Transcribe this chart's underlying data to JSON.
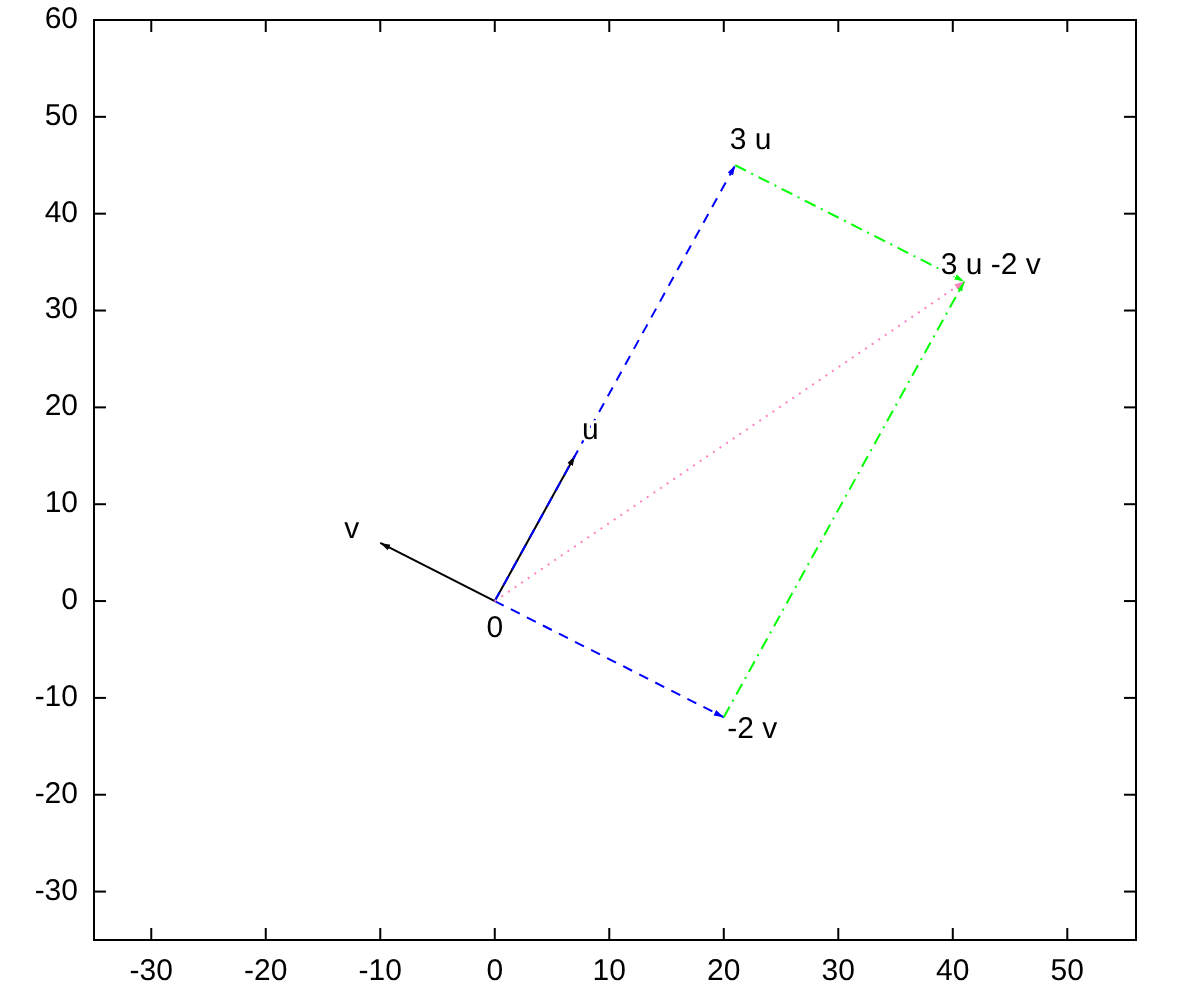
{
  "chart_data": {
    "type": "line",
    "xlim": [
      -35,
      56
    ],
    "ylim": [
      -35,
      60
    ],
    "xticks": [
      -30,
      -20,
      -10,
      0,
      10,
      20,
      30,
      40,
      50
    ],
    "yticks": [
      -30,
      -20,
      -10,
      0,
      10,
      20,
      30,
      40,
      50,
      60
    ],
    "grid": false,
    "marker": "none",
    "series": [
      {
        "color": "#000000",
        "line_style": "solid",
        "x": [
          0,
          7
        ],
        "values": [
          0,
          15
        ]
      },
      {
        "color": "#000000",
        "line_style": "solid",
        "x": [
          0,
          -10
        ],
        "values": [
          0,
          6
        ]
      },
      {
        "color": "#0000ff",
        "line_style": "dashed",
        "x": [
          0,
          21
        ],
        "values": [
          0,
          45
        ]
      },
      {
        "color": "#0000ff",
        "line_style": "dashed",
        "x": [
          0,
          20
        ],
        "values": [
          0,
          -12
        ]
      },
      {
        "color": "#00ff00",
        "line_style": "dashdot",
        "x": [
          21,
          41
        ],
        "values": [
          45,
          33
        ]
      },
      {
        "color": "#00ff00",
        "line_style": "dashdot",
        "x": [
          20,
          41
        ],
        "values": [
          -12,
          33
        ]
      },
      {
        "color": "#ff80c0",
        "line_style": "dotted",
        "x": [
          0,
          41
        ],
        "values": [
          0,
          33
        ]
      }
    ],
    "annotations": [
      {
        "text": "0",
        "x": 0,
        "y": 0
      },
      {
        "text": "u",
        "x": 7,
        "y": 15
      },
      {
        "text": "v",
        "x": -10,
        "y": 6
      },
      {
        "text": "3 u",
        "x": 21,
        "y": 45
      },
      {
        "text": "3 u -2 v",
        "x": 41,
        "y": 33
      },
      {
        "text": "-2 v",
        "x": 20,
        "y": -12
      }
    ]
  }
}
